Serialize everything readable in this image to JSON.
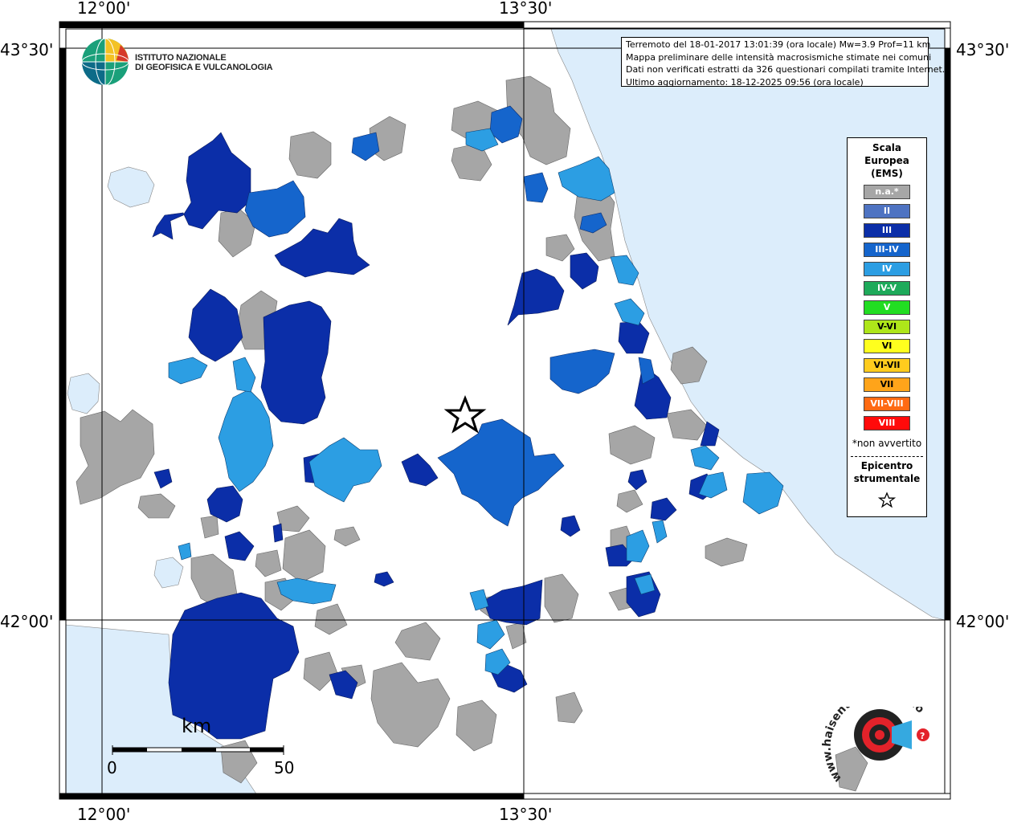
{
  "map": {
    "coord_labels": {
      "top_left": "12°00'",
      "top_right": "13°30'",
      "bottom_left": "12°00'",
      "bottom_right": "13°30'",
      "left_top": "43°30'",
      "left_bottom": "42°00'",
      "right_top": "43°30'",
      "right_bottom": "42°00'"
    },
    "info_lines": [
      "Terremoto del 18-01-2017 13:01:39 (ora locale) Mw=3.9 Prof=11 km",
      "Mappa preliminare delle intensità macrosismiche stimate nei comuni",
      "Dati non verificati estratti da 326 questionari compilati tramite Internet.",
      "Ultimo aggiornamento: 18-12-2025 09:56 (ora locale)"
    ],
    "logo_lines": [
      "ISTITUTO NAZIONALE",
      "DI GEOFISICA E VULCANOLOGIA"
    ],
    "scale": {
      "unit": "km",
      "start": "0",
      "end": "50"
    },
    "haisentito_text": "www.haisentitoilterremoto.it",
    "colors": {
      "sea": "#dcedfb",
      "na": "#a6a6a6",
      "II": "#4e73c2",
      "III": "#0b2ea8",
      "III-IV": "#1565cc",
      "IV": "#2c9ee3"
    }
  },
  "legend": {
    "title_lines": [
      "Scala",
      "Europea",
      "(EMS)"
    ],
    "items": [
      {
        "label": "n.a.*",
        "color": "#a6a6a6"
      },
      {
        "label": "II",
        "color": "#4e73c2"
      },
      {
        "label": "III",
        "color": "#0b2ea8"
      },
      {
        "label": "III-IV",
        "color": "#1565cc"
      },
      {
        "label": "IV",
        "color": "#2c9ee3"
      },
      {
        "label": "IV-V",
        "color": "#1eaa5a"
      },
      {
        "label": "V",
        "color": "#22dd22"
      },
      {
        "label": "V-VI",
        "color": "#aee61a"
      },
      {
        "label": "VI",
        "color": "#ffff1e"
      },
      {
        "label": "VI-VII",
        "color": "#ffcc1e"
      },
      {
        "label": "VII",
        "color": "#ffa41a"
      },
      {
        "label": "VII-VIII",
        "color": "#ff6a12"
      },
      {
        "label": "VIII",
        "color": "#ff0a0a"
      }
    ],
    "note": "*non avvertito",
    "epicenter_lines": [
      "Epicentro",
      "strumentale"
    ]
  }
}
